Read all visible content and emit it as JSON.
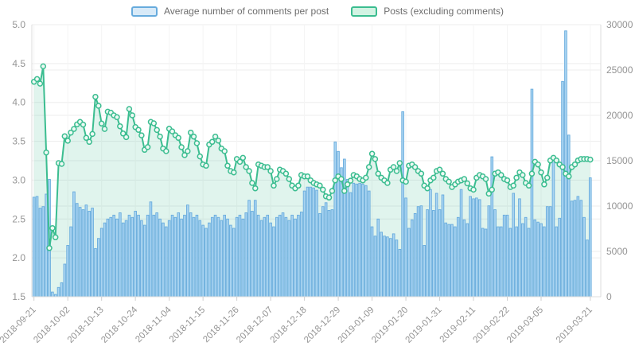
{
  "legend": {
    "items": [
      {
        "id": "comments",
        "label": "Average number of comments per post"
      },
      {
        "id": "posts",
        "label": "Posts (excluding comments)"
      }
    ]
  },
  "chart_data": {
    "type": "bar",
    "subtype": "bar+line dual axis time series, daily",
    "start_date": "2018-09-21",
    "end_date": "2019-03-21",
    "x_tick_labels": [
      "2018-09-21",
      "2018-10-02",
      "2018-10-13",
      "2018-10-24",
      "2018-11-04",
      "2018-11-15",
      "2018-11-26",
      "2018-12-07",
      "2018-12-18",
      "2018-12-29",
      "2019-01-09",
      "2019-01-20",
      "2019-01-31",
      "2019-02-11",
      "2019-02-22",
      "2019-03-05",
      "2019-03-21"
    ],
    "x_tick_indices": [
      0,
      11,
      22,
      33,
      44,
      55,
      66,
      77,
      88,
      99,
      110,
      121,
      132,
      143,
      154,
      165,
      181
    ],
    "left_axis": {
      "min": 1.5,
      "max": 5.0,
      "step": 0.5,
      "ticks": [
        "1.5",
        "2.0",
        "2.5",
        "3.0",
        "3.5",
        "4.0",
        "4.5",
        "5.0"
      ]
    },
    "right_axis": {
      "min": 0,
      "max": 30000,
      "step": 5000,
      "ticks": [
        "0",
        "5000",
        "10000",
        "15000",
        "20000",
        "25000",
        "30000"
      ]
    },
    "grid": true,
    "legend_position": "top",
    "series": [
      {
        "name": "Average number of comments per post",
        "type": "bar",
        "axis": "left",
        "values": [
          2.78,
          2.79,
          2.64,
          2.66,
          2.82,
          3.01,
          1.56,
          1.53,
          1.62,
          1.68,
          1.92,
          2.16,
          2.4,
          2.85,
          2.7,
          2.65,
          2.62,
          2.68,
          2.6,
          2.64,
          2.12,
          2.25,
          2.38,
          2.45,
          2.5,
          2.52,
          2.55,
          2.5,
          2.58,
          2.45,
          2.48,
          2.55,
          2.52,
          2.6,
          2.55,
          2.48,
          2.42,
          2.55,
          2.72,
          2.55,
          2.58,
          2.5,
          2.45,
          2.4,
          2.48,
          2.55,
          2.52,
          2.58,
          2.5,
          2.55,
          2.68,
          2.58,
          2.52,
          2.55,
          2.48,
          2.42,
          2.38,
          2.45,
          2.52,
          2.55,
          2.52,
          2.48,
          2.55,
          2.5,
          2.42,
          2.38,
          2.52,
          2.55,
          2.5,
          2.58,
          2.74,
          2.6,
          2.74,
          2.55,
          2.48,
          2.52,
          2.55,
          2.45,
          2.4,
          2.52,
          2.55,
          2.58,
          2.52,
          2.48,
          2.55,
          2.5,
          2.55,
          2.59,
          2.86,
          2.91,
          2.91,
          2.9,
          2.87,
          2.57,
          2.66,
          2.71,
          2.61,
          2.62,
          3.49,
          3.37,
          3.16,
          3.27,
          3.01,
          2.84,
          2.96,
          2.95,
          2.96,
          2.95,
          2.93,
          2.86,
          2.4,
          2.28,
          2.5,
          2.33,
          2.28,
          2.27,
          2.25,
          2.31,
          2.23,
          2.11,
          3.88,
          2.77,
          2.38,
          2.49,
          2.57,
          2.66,
          2.67,
          2.16,
          2.62,
          2.88,
          2.61,
          2.83,
          2.62,
          2.81,
          2.45,
          2.43,
          2.43,
          2.4,
          2.52,
          2.88,
          2.49,
          2.44,
          2.79,
          2.76,
          2.77,
          2.75,
          2.38,
          2.37,
          2.67,
          3.3,
          2.62,
          2.4,
          2.4,
          2.55,
          2.55,
          2.38,
          2.83,
          2.4,
          2.76,
          2.44,
          2.52,
          2.38,
          4.17,
          2.49,
          2.46,
          2.44,
          2.4,
          2.66,
          2.66,
          3.26,
          2.4,
          2.51,
          4.27,
          4.92,
          3.58,
          2.73,
          2.74,
          2.79,
          2.74,
          2.52,
          2.23,
          3.03
        ]
      },
      {
        "name": "Posts (excluding comments)",
        "type": "line",
        "axis": "right",
        "values": [
          23700,
          24000,
          23500,
          25400,
          15900,
          5370,
          7570,
          6550,
          14740,
          14650,
          17700,
          17200,
          18100,
          18500,
          19000,
          19270,
          18980,
          17520,
          17080,
          17950,
          22040,
          21050,
          19100,
          18500,
          20400,
          20300,
          20000,
          19800,
          18800,
          18000,
          17600,
          20700,
          20000,
          18700,
          18400,
          17800,
          16200,
          16500,
          19270,
          19120,
          18390,
          17660,
          16340,
          16050,
          18530,
          18240,
          17810,
          17520,
          16490,
          15610,
          16050,
          18100,
          17660,
          16930,
          15470,
          14590,
          14450,
          16780,
          17080,
          17660,
          17220,
          16340,
          16050,
          14450,
          13860,
          13710,
          15180,
          14880,
          15320,
          14300,
          13860,
          12540,
          11960,
          14590,
          14450,
          14300,
          14300,
          13860,
          12250,
          12980,
          14010,
          13860,
          13570,
          12980,
          12250,
          11960,
          12250,
          13420,
          13270,
          13270,
          12830,
          12540,
          12390,
          12250,
          11810,
          11080,
          10940,
          11670,
          12830,
          13270,
          12980,
          11670,
          12390,
          12800,
          13420,
          13270,
          12980,
          12830,
          13120,
          14300,
          15760,
          15180,
          13570,
          13120,
          12830,
          12540,
          14010,
          14300,
          13860,
          14740,
          12830,
          12680,
          14450,
          14590,
          14300,
          13860,
          13570,
          12250,
          11960,
          12830,
          13120,
          13860,
          14010,
          13570,
          12980,
          12680,
          12100,
          12390,
          12680,
          12830,
          12980,
          12500,
          11960,
          11810,
          13120,
          13420,
          13270,
          12980,
          11370,
          11810,
          13570,
          13710,
          13420,
          12980,
          12830,
          12100,
          12250,
          13120,
          13710,
          13420,
          12540,
          12250,
          13570,
          14880,
          14590,
          13710,
          12390,
          13120,
          15030,
          15320,
          15030,
          14590,
          14300,
          13570,
          13270,
          14300,
          14590,
          15030,
          15180,
          15180,
          15180,
          15120
        ]
      }
    ],
    "colors": {
      "bar_fill": "#aad4f1",
      "bar_border": "#67abdd",
      "bar_legend_fill": "#d8eaf8",
      "line": "#3bbd90",
      "line_area_fill": "rgba(61,189,144,0.16)",
      "marker_fill": "#eef9f4",
      "line_legend_fill": "#d2f3e3",
      "axis_text": "#949494",
      "grid_line": "#ededed",
      "axis_line": "#dcdcdc"
    }
  }
}
